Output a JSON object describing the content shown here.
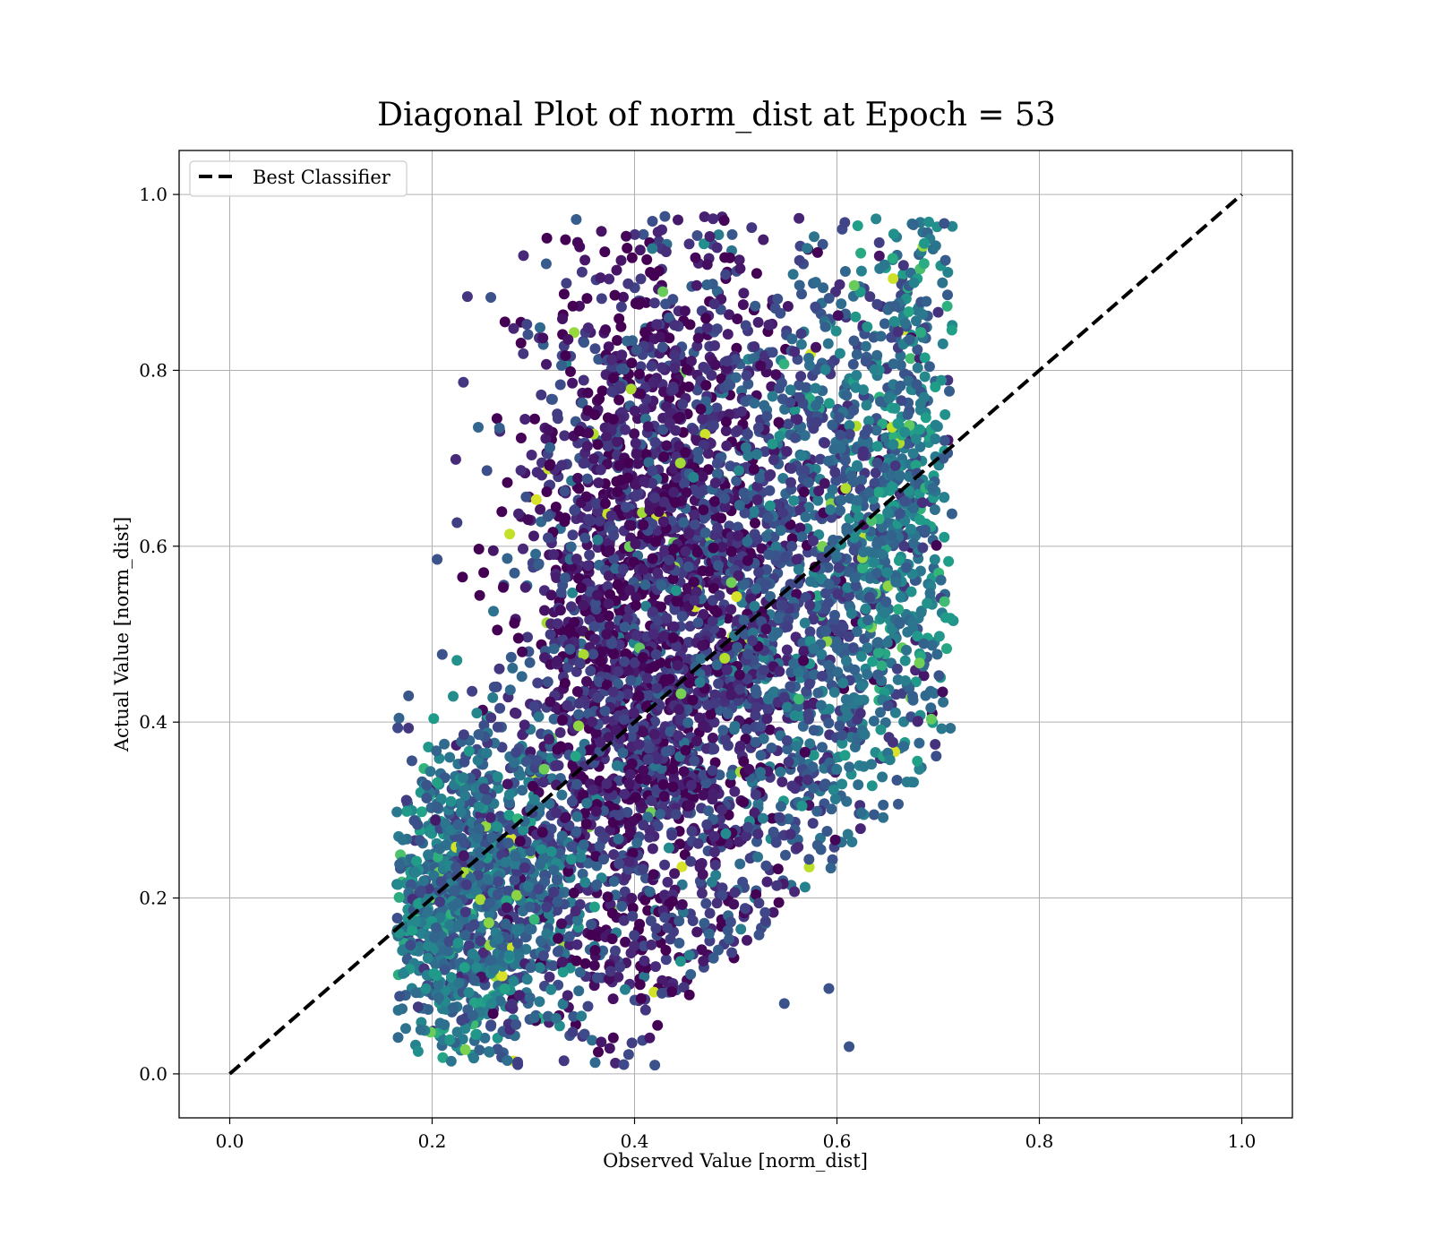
{
  "chart_data": {
    "type": "scatter",
    "title": "Diagonal Plot of norm_dist at Epoch = 53",
    "xlabel": "Observed Value [norm_dist]",
    "ylabel": "Actual Value [norm_dist]",
    "xlim": [
      -0.05,
      1.05
    ],
    "ylim": [
      -0.05,
      1.05
    ],
    "xticks": [
      "0.0",
      "0.2",
      "0.4",
      "0.6",
      "0.8",
      "1.0"
    ],
    "yticks": [
      "0.0",
      "0.2",
      "0.4",
      "0.6",
      "0.8",
      "1.0"
    ],
    "grid": true,
    "legend": {
      "placement": "upper-left",
      "entries": [
        {
          "label": "Best Classifier",
          "style": "black dashed line"
        }
      ]
    },
    "colormap": "viridis",
    "reference_line": {
      "name": "Best Classifier",
      "x": [
        0.0,
        1.0
      ],
      "y": [
        0.0,
        1.0
      ],
      "color": "#000000",
      "style": "dashed"
    },
    "scatter_cloud": {
      "x_range": [
        0.165,
        0.715
      ],
      "y_range": [
        0.01,
        0.975
      ],
      "regions": [
        {
          "x_center": 0.21,
          "y_center": 0.18,
          "x_spread": 0.035,
          "y_spread": 0.08,
          "weight": 0.1,
          "color_level": 0.4
        },
        {
          "x_center": 0.28,
          "y_center": 0.22,
          "x_spread": 0.045,
          "y_spread": 0.1,
          "weight": 0.12,
          "color_level": 0.32
        },
        {
          "x_center": 0.37,
          "y_center": 0.45,
          "x_spread": 0.05,
          "y_spread": 0.24,
          "weight": 0.2,
          "color_level": 0.1
        },
        {
          "x_center": 0.44,
          "y_center": 0.55,
          "x_spread": 0.05,
          "y_spread": 0.25,
          "weight": 0.22,
          "color_level": 0.08
        },
        {
          "x_center": 0.52,
          "y_center": 0.5,
          "x_spread": 0.05,
          "y_spread": 0.22,
          "weight": 0.16,
          "color_level": 0.22
        },
        {
          "x_center": 0.62,
          "y_center": 0.58,
          "x_spread": 0.045,
          "y_spread": 0.2,
          "weight": 0.14,
          "color_level": 0.32
        },
        {
          "x_center": 0.67,
          "y_center": 0.66,
          "x_spread": 0.025,
          "y_spread": 0.18,
          "weight": 0.06,
          "color_level": 0.42
        }
      ],
      "outliers": [
        {
          "x": 0.205,
          "y": 0.585
        },
        {
          "x": 0.21,
          "y": 0.477
        },
        {
          "x": 0.612,
          "y": 0.031
        },
        {
          "x": 0.592,
          "y": 0.097
        },
        {
          "x": 0.42,
          "y": 0.01
        },
        {
          "x": 0.548,
          "y": 0.08
        },
        {
          "x": 0.258,
          "y": 0.883
        },
        {
          "x": 0.706,
          "y": 0.967
        },
        {
          "x": 0.43,
          "y": 0.975
        }
      ]
    }
  }
}
